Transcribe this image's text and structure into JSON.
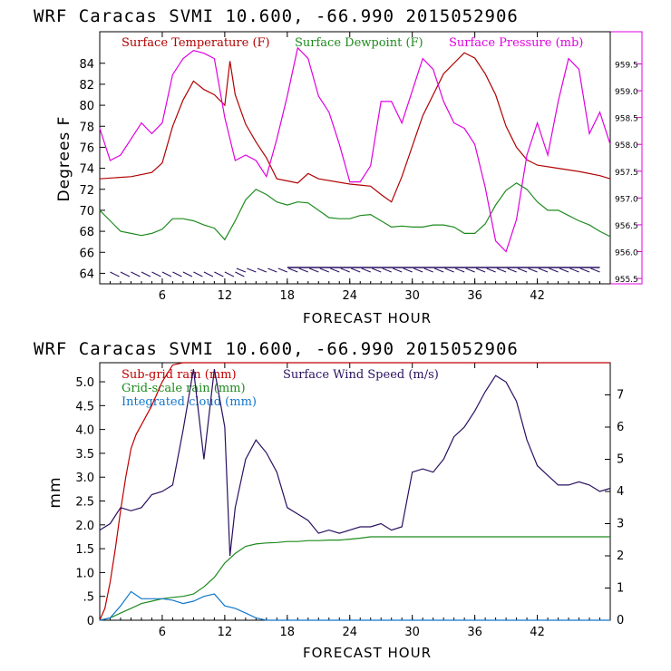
{
  "colors": {
    "temp": "#b00000",
    "dew": "#1e8a1e",
    "pres": "#e000e0",
    "wind": "#2a1060",
    "subrain": "#c00000",
    "gridrain": "#1e8a1e",
    "cloud": "#1177cc",
    "axis": "#000000",
    "pframe": "#e000e0"
  },
  "chart_data": [
    {
      "type": "line",
      "title": "WRF   Caracas SVMI  10.600, -66.990  2015052906",
      "xlabel": "FORECAST HOUR",
      "ylabel": "Degrees F",
      "xlim": [
        0,
        49
      ],
      "ylim": [
        63,
        87
      ],
      "y2lim": [
        955.4,
        960.1
      ],
      "xticks": [
        "6",
        "12",
        "18",
        "24",
        "30",
        "36",
        "42"
      ],
      "yticks": [
        "64",
        "66",
        "68",
        "70",
        "72",
        "74",
        "76",
        "78",
        "80",
        "82",
        "84"
      ],
      "y2ticks": [
        "955.5",
        "956.0",
        "956.5",
        "957.0",
        "957.5",
        "958.0",
        "958.5",
        "959.0",
        "959.5"
      ],
      "legend": [
        "Surface Temperature (F)",
        "Surface Dewpoint (F)",
        "Surface Pressure (mb)"
      ],
      "series": [
        {
          "name": "Surface Temperature (F)",
          "x": [
            0,
            3,
            5,
            6,
            7,
            8,
            9,
            10,
            11,
            12,
            12.5,
            13,
            14,
            15,
            16,
            17,
            18,
            19,
            20,
            21,
            24,
            25,
            26,
            27,
            28,
            29,
            31,
            33,
            35,
            36,
            37,
            38,
            39,
            40,
            41,
            42,
            44,
            46,
            48,
            49
          ],
          "y": [
            73,
            73.2,
            73.6,
            74.5,
            78,
            80.5,
            82.3,
            81.5,
            81,
            80,
            84.2,
            81,
            78.2,
            76.5,
            75,
            73,
            72.8,
            72.6,
            73.5,
            73,
            72.5,
            72.4,
            72.3,
            71.5,
            70.8,
            73.2,
            79,
            83,
            85,
            84.5,
            83,
            81,
            78,
            76,
            74.8,
            74.3,
            74,
            73.7,
            73.3,
            73
          ]
        },
        {
          "name": "Surface Dewpoint (F)",
          "x": [
            0,
            1,
            2,
            3,
            4,
            5,
            6,
            7,
            8,
            9,
            10,
            11,
            12,
            13,
            14,
            15,
            16,
            17,
            18,
            19,
            20,
            21,
            22,
            23,
            24,
            25,
            26,
            27,
            28,
            29,
            30,
            31,
            32,
            33,
            34,
            35,
            36,
            37,
            38,
            39,
            40,
            41,
            42,
            43,
            44,
            45,
            46,
            47,
            48,
            49
          ],
          "y": [
            70,
            69,
            68,
            67.8,
            67.6,
            67.8,
            68.2,
            69.2,
            69.2,
            69,
            68.6,
            68.3,
            67.2,
            69,
            71,
            72,
            71.5,
            70.8,
            70.5,
            70.8,
            70.7,
            70,
            69.3,
            69.2,
            69.2,
            69.5,
            69.6,
            69,
            68.4,
            68.5,
            68.4,
            68.4,
            68.6,
            68.6,
            68.4,
            67.8,
            67.8,
            68.7,
            70.5,
            71.9,
            72.6,
            72,
            70.8,
            70,
            70,
            69.5,
            69,
            68.6,
            68,
            67.5
          ]
        },
        {
          "name": "Surface Pressure (mb)",
          "x": [
            0,
            1,
            2,
            3,
            4,
            5,
            6,
            7,
            8,
            9,
            10,
            11,
            12,
            13,
            14,
            15,
            16,
            17,
            18,
            19,
            20,
            21,
            22,
            23,
            24,
            25,
            26,
            27,
            28,
            29,
            30,
            31,
            32,
            33,
            34,
            35,
            36,
            37,
            38,
            39,
            40,
            41,
            42,
            43,
            44,
            45,
            46,
            47,
            48,
            49
          ],
          "y": [
            958.3,
            957.7,
            957.8,
            958.1,
            958.4,
            958.2,
            958.4,
            959.3,
            959.6,
            959.75,
            959.7,
            959.6,
            958.5,
            957.7,
            957.8,
            957.7,
            957.4,
            958.1,
            958.9,
            959.8,
            959.6,
            958.9,
            958.6,
            958.0,
            957.3,
            957.3,
            957.6,
            958.8,
            958.8,
            958.4,
            959.0,
            959.6,
            959.4,
            958.8,
            958.4,
            958.3,
            958.0,
            957.2,
            956.2,
            956.0,
            956.6,
            957.8,
            958.4,
            957.8,
            958.8,
            959.6,
            959.4,
            958.2,
            958.6,
            958.0
          ]
        }
      ]
    },
    {
      "type": "line",
      "title": "WRF   Caracas SVMI  10.600, -66.990  2015052906",
      "xlabel": "FORECAST HOUR",
      "ylabel": "mm",
      "xlim": [
        0,
        49
      ],
      "ylim": [
        0,
        5.4
      ],
      "y2lim": [
        0,
        8
      ],
      "xticks": [
        "6",
        "12",
        "18",
        "24",
        "30",
        "36",
        "42"
      ],
      "yticks": [
        "0",
        ".5",
        "1.0",
        "1.5",
        "2.0",
        "2.5",
        "3.0",
        "3.5",
        "4.0",
        "4.5",
        "5.0"
      ],
      "y2ticks": [
        "0",
        "1",
        "2",
        "3",
        "4",
        "5",
        "6",
        "7"
      ],
      "legend": [
        "Sub-grid rain (mm)",
        "Grid-scale rain (mm)",
        "Integrated cloud (mm)",
        "Surface Wind Speed (m/s)"
      ],
      "series": [
        {
          "name": "Sub-grid rain (mm)",
          "x": [
            0,
            0.5,
            1,
            1.5,
            2,
            2.5,
            3,
            3.5,
            4,
            5,
            6,
            7,
            8,
            49
          ],
          "y": [
            0,
            0.25,
            0.8,
            1.5,
            2.3,
            3.0,
            3.6,
            3.9,
            4.1,
            4.5,
            5.0,
            5.35,
            5.4,
            5.4
          ]
        },
        {
          "name": "Grid-scale rain (mm)",
          "x": [
            0,
            1,
            2,
            3,
            4,
            5,
            6,
            7,
            8,
            9,
            10,
            11,
            12,
            13,
            14,
            15,
            16,
            17,
            18,
            19,
            20,
            21,
            22,
            23,
            24,
            25,
            26,
            27,
            28,
            29,
            30,
            49
          ],
          "y": [
            0,
            0.05,
            0.15,
            0.25,
            0.35,
            0.4,
            0.45,
            0.48,
            0.5,
            0.55,
            0.7,
            0.9,
            1.2,
            1.4,
            1.55,
            1.6,
            1.62,
            1.63,
            1.65,
            1.65,
            1.67,
            1.67,
            1.68,
            1.68,
            1.7,
            1.72,
            1.75,
            1.75,
            1.75,
            1.75,
            1.75,
            1.75
          ]
        },
        {
          "name": "Integrated cloud (mm)",
          "x": [
            0,
            1,
            2,
            3,
            4,
            5,
            6,
            7,
            8,
            9,
            10,
            11,
            12,
            13,
            14,
            15,
            16,
            17,
            18,
            49
          ],
          "y": [
            0,
            0.05,
            0.3,
            0.6,
            0.45,
            0.45,
            0.45,
            0.42,
            0.35,
            0.4,
            0.5,
            0.55,
            0.3,
            0.25,
            0.15,
            0.05,
            0,
            0,
            0,
            0
          ]
        },
        {
          "name": "Surface Wind Speed (m/s)",
          "x": [
            0,
            1,
            2,
            3,
            4,
            5,
            6,
            7,
            8,
            9,
            10,
            11,
            12,
            12.5,
            13,
            14,
            15,
            16,
            17,
            18,
            19,
            20,
            21,
            22,
            23,
            24,
            25,
            26,
            27,
            28,
            29,
            30,
            31,
            32,
            33,
            34,
            35,
            36,
            37,
            38,
            39,
            40,
            41,
            42,
            43,
            44,
            45,
            46,
            47,
            48,
            49
          ],
          "y": [
            2.8,
            3,
            3.5,
            3.4,
            3.5,
            3.9,
            4,
            4.2,
            5.9,
            7.8,
            5,
            7.8,
            6,
            2,
            3.5,
            5,
            5.6,
            5.2,
            4.6,
            3.5,
            3.3,
            3.1,
            2.7,
            2.8,
            2.7,
            2.8,
            2.9,
            2.9,
            3,
            2.8,
            2.9,
            4.6,
            4.7,
            4.6,
            5,
            5.7,
            6,
            6.5,
            7.1,
            7.6,
            7.4,
            6.8,
            5.6,
            4.8,
            4.5,
            4.2,
            4.2,
            4.3,
            4.2,
            4,
            4.1
          ]
        }
      ]
    }
  ],
  "winds": {
    "note": "wind barbs along bottom of upper plot"
  }
}
